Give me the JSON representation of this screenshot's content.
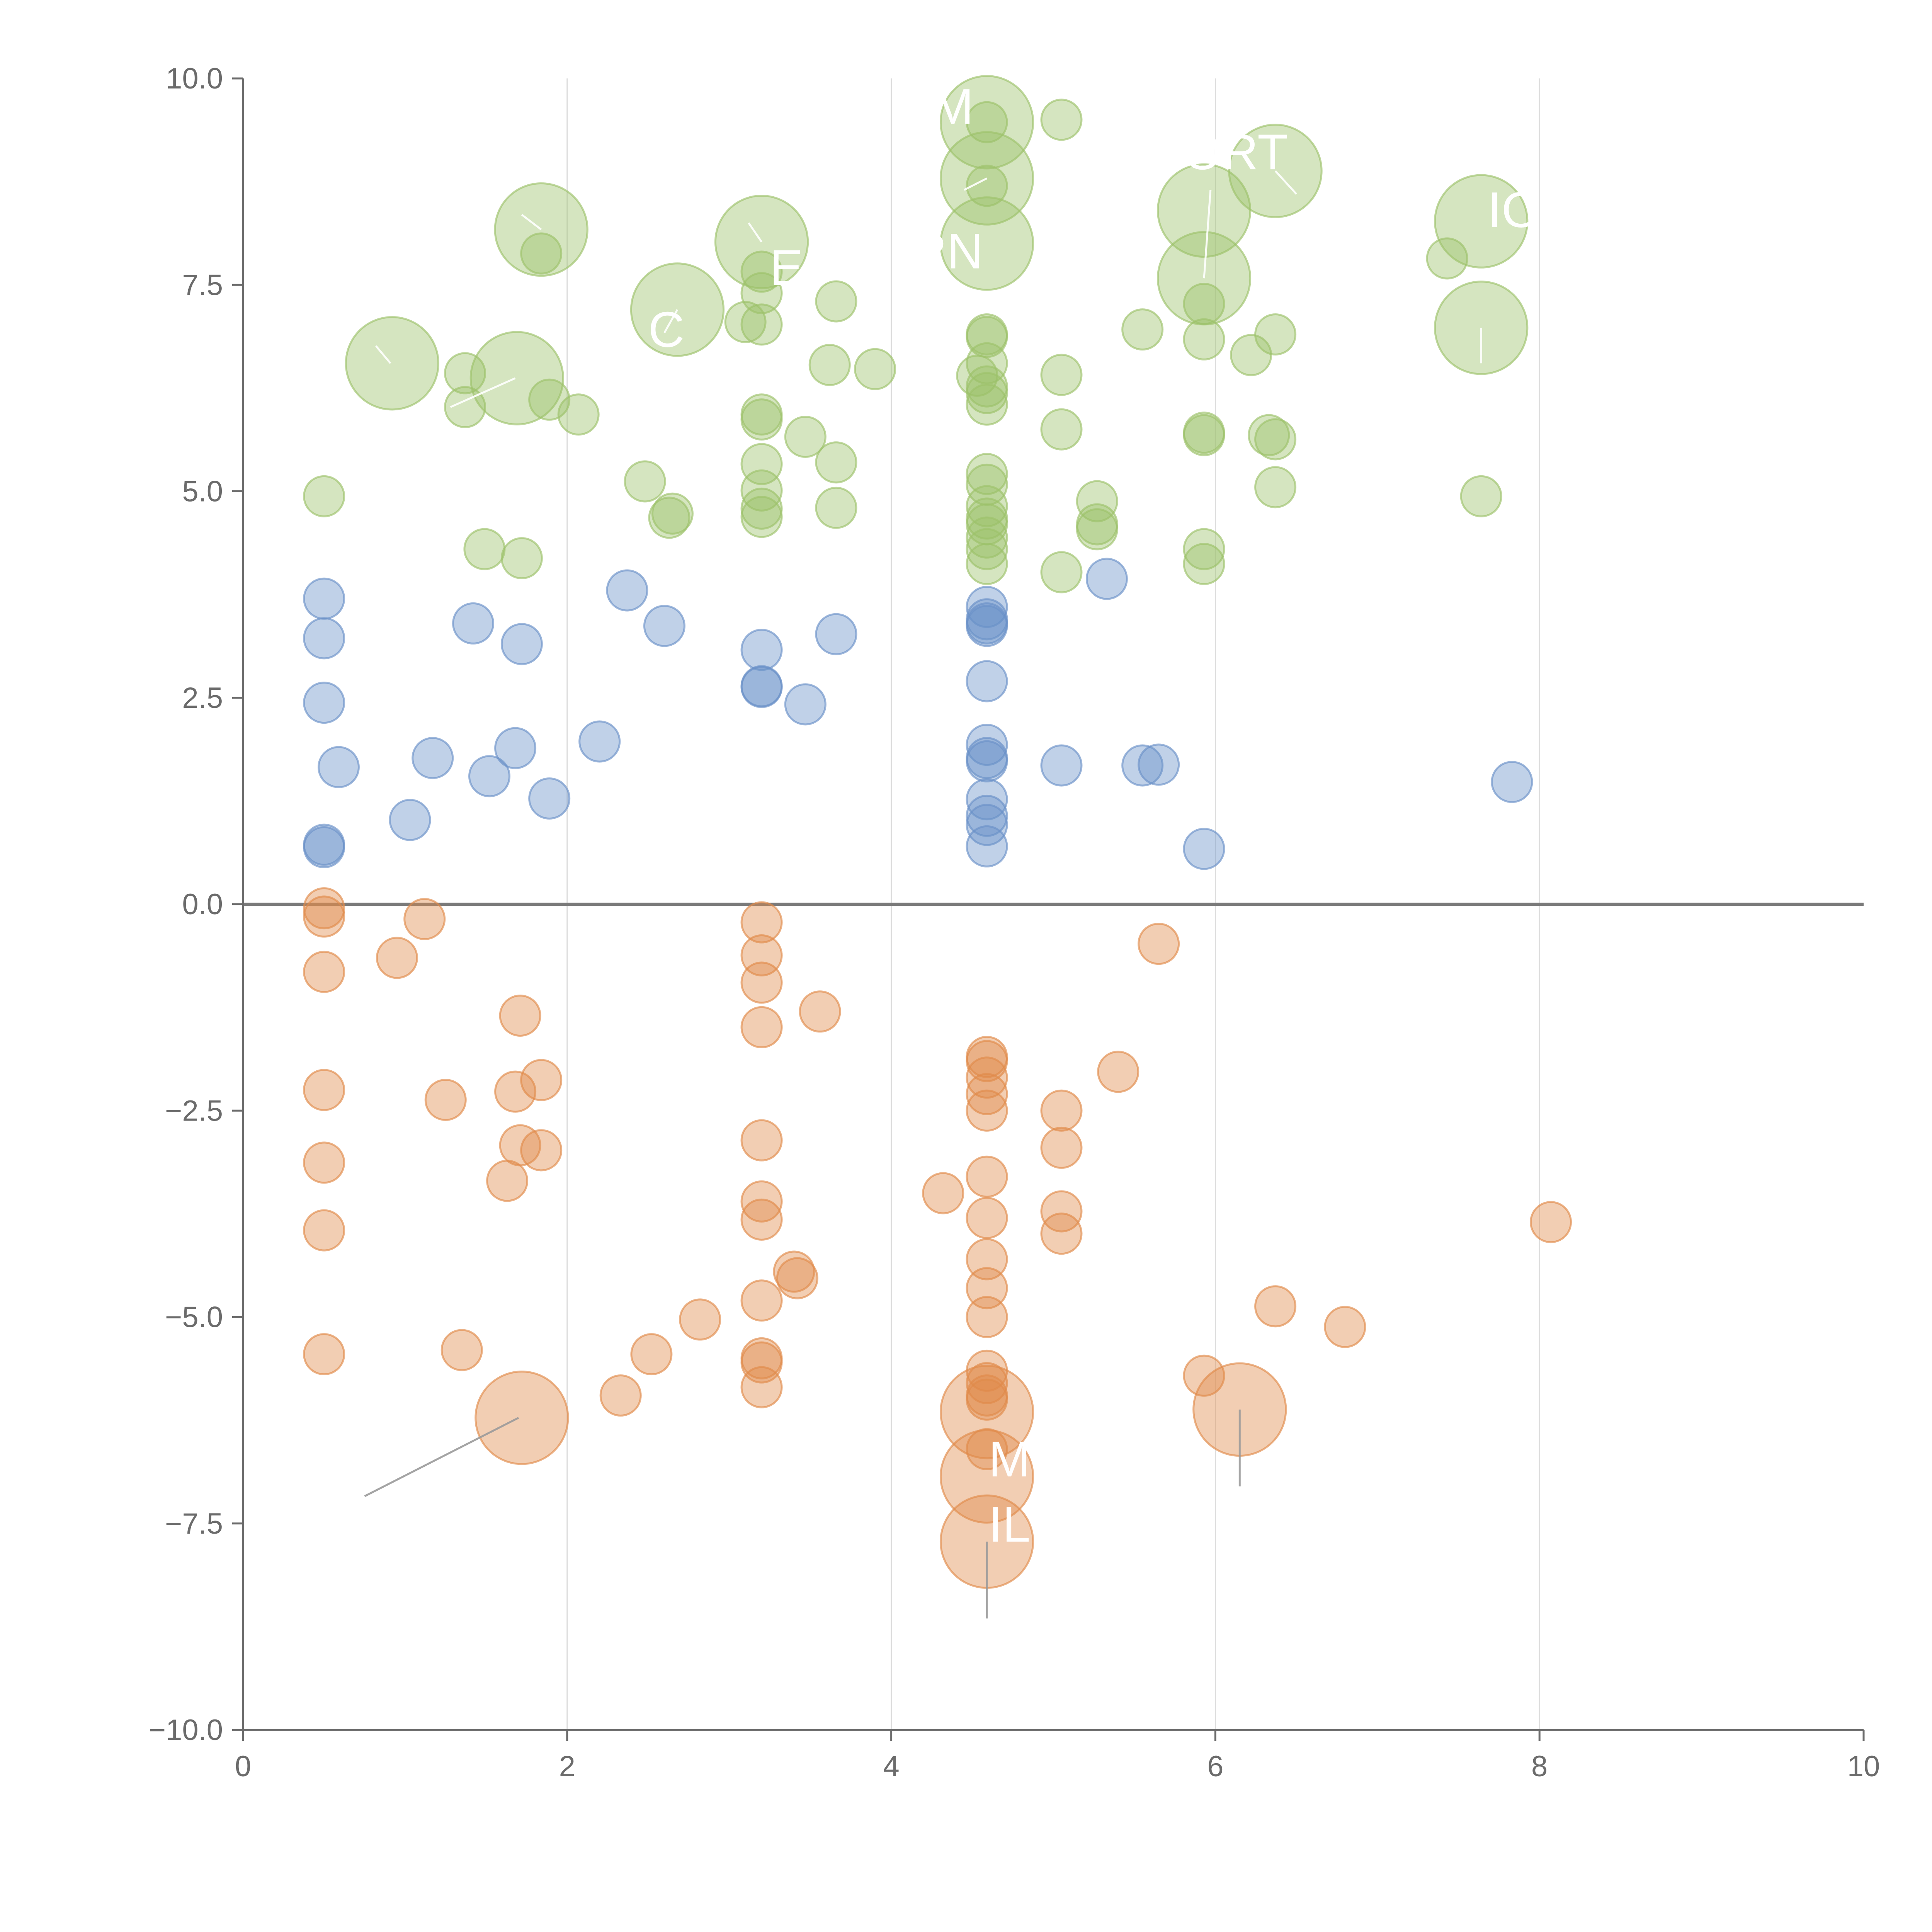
{
  "chart_data": {
    "type": "scatter",
    "title": "",
    "xlabel": "",
    "ylabel": "",
    "xlim": [
      0,
      10
    ],
    "ylim": [
      -10,
      10
    ],
    "x_ticks": [
      "0",
      "2",
      "4",
      "6",
      "8",
      "10"
    ],
    "y_ticks": [
      "−10.0",
      "−7.5",
      "−5.0",
      "−2.5",
      "0.0",
      "2.5",
      "5.0",
      "7.5",
      "10.0"
    ],
    "x_tick_values": [
      0,
      2,
      4,
      6,
      8,
      10
    ],
    "y_tick_values": [
      -10,
      -7.5,
      -5,
      -2.5,
      0,
      2.5,
      5,
      7.5,
      10
    ],
    "grid_x": true,
    "grid_y": false,
    "zero_line": true,
    "colors": {
      "green": "#9cc26a",
      "blue": "#6a91c8",
      "orange": "#e08a4a",
      "axis": "#6b6b6b",
      "grid": "#dcdcdc",
      "zero_line": "#7a7a7a"
    },
    "series": [
      {
        "color_key": "green",
        "points": [
          [
            0.5,
            4.94,
            1
          ],
          [
            0.92,
            6.55,
            2.3
          ],
          [
            1.37,
            6.43,
            1
          ],
          [
            1.37,
            6.02,
            1
          ],
          [
            1.49,
            4.3,
            1
          ],
          [
            1.69,
            6.37,
            2.3
          ],
          [
            1.72,
            4.19,
            1
          ],
          [
            1.84,
            8.17,
            2.3
          ],
          [
            1.84,
            7.88,
            1
          ],
          [
            1.89,
            6.11,
            1
          ],
          [
            2.07,
            5.93,
            1
          ],
          [
            2.48,
            5.12,
            1
          ],
          [
            2.63,
            4.68,
            1
          ],
          [
            2.65,
            4.73,
            1
          ],
          [
            2.68,
            7.2,
            2.3
          ],
          [
            3.1,
            7.05,
            1
          ],
          [
            3.2,
            7.02,
            1
          ],
          [
            3.2,
            8.02,
            2.3
          ],
          [
            3.2,
            7.66,
            1
          ],
          [
            3.2,
            7.4,
            1
          ],
          [
            3.2,
            5.93,
            1
          ],
          [
            3.2,
            5.87,
            1
          ],
          [
            3.2,
            5.33,
            1
          ],
          [
            3.2,
            5.01,
            1
          ],
          [
            3.2,
            4.79,
            1
          ],
          [
            3.2,
            4.69,
            1
          ],
          [
            3.47,
            5.66,
            1
          ],
          [
            3.62,
            6.53,
            1
          ],
          [
            3.66,
            5.35,
            1
          ],
          [
            3.66,
            4.8,
            1
          ],
          [
            3.66,
            7.3,
            1
          ],
          [
            3.9,
            6.48,
            1
          ],
          [
            4.59,
            9.47,
            2.3
          ],
          [
            4.59,
            9.47,
            1
          ],
          [
            4.59,
            8.79,
            2.3
          ],
          [
            4.59,
            8.7,
            1
          ],
          [
            4.59,
            8.0,
            2.3
          ],
          [
            4.59,
            6.9,
            1
          ],
          [
            4.59,
            6.87,
            1
          ],
          [
            4.59,
            6.55,
            1
          ],
          [
            4.53,
            6.4,
            1
          ],
          [
            4.59,
            6.27,
            1
          ],
          [
            4.59,
            6.19,
            1
          ],
          [
            4.59,
            6.05,
            1
          ],
          [
            4.59,
            5.21,
            1
          ],
          [
            4.59,
            5.08,
            1
          ],
          [
            4.59,
            4.82,
            1
          ],
          [
            4.59,
            4.67,
            1
          ],
          [
            4.59,
            4.6,
            1
          ],
          [
            4.59,
            4.44,
            1
          ],
          [
            4.59,
            4.3,
            1
          ],
          [
            4.59,
            4.12,
            1
          ],
          [
            5.05,
            9.5,
            1
          ],
          [
            5.05,
            6.41,
            1
          ],
          [
            5.05,
            5.75,
            1
          ],
          [
            5.05,
            4.02,
            1
          ],
          [
            5.27,
            4.88,
            1
          ],
          [
            5.27,
            4.6,
            1
          ],
          [
            5.27,
            4.54,
            1
          ],
          [
            5.55,
            6.96,
            1
          ],
          [
            5.93,
            8.4,
            2.3
          ],
          [
            5.93,
            7.58,
            2.3
          ],
          [
            5.93,
            7.27,
            1
          ],
          [
            5.93,
            6.84,
            1
          ],
          [
            5.93,
            5.71,
            1
          ],
          [
            5.93,
            5.68,
            1
          ],
          [
            5.93,
            4.3,
            1
          ],
          [
            5.93,
            4.12,
            1
          ],
          [
            6.22,
            6.65,
            1
          ],
          [
            6.33,
            5.68,
            1
          ],
          [
            6.37,
            8.88,
            2.3
          ],
          [
            6.37,
            6.9,
            1
          ],
          [
            6.37,
            5.63,
            1
          ],
          [
            6.37,
            5.05,
            1
          ],
          [
            7.43,
            7.82,
            1
          ],
          [
            7.64,
            8.27,
            2.3
          ],
          [
            7.64,
            6.98,
            2.3
          ],
          [
            7.64,
            4.94,
            1
          ]
        ]
      },
      {
        "color_key": "blue",
        "points": [
          [
            0.5,
            3.7,
            1
          ],
          [
            0.5,
            3.22,
            1
          ],
          [
            0.5,
            2.44,
            1
          ],
          [
            0.59,
            1.66,
            1
          ],
          [
            0.5,
            0.72,
            1
          ],
          [
            0.5,
            0.69,
            1
          ],
          [
            1.03,
            1.02,
            1
          ],
          [
            1.17,
            1.77,
            1
          ],
          [
            1.42,
            3.4,
            1
          ],
          [
            1.52,
            1.55,
            1
          ],
          [
            1.68,
            1.89,
            1
          ],
          [
            1.72,
            3.15,
            1
          ],
          [
            1.89,
            1.28,
            1
          ],
          [
            2.2,
            1.97,
            1
          ],
          [
            2.37,
            3.8,
            1
          ],
          [
            2.6,
            3.37,
            1
          ],
          [
            3.2,
            3.08,
            1
          ],
          [
            3.2,
            2.64,
            1
          ],
          [
            3.2,
            2.63,
            1
          ],
          [
            3.47,
            2.42,
            1
          ],
          [
            3.66,
            3.27,
            1
          ],
          [
            4.59,
            3.6,
            1
          ],
          [
            4.59,
            3.45,
            1
          ],
          [
            4.59,
            3.4,
            1
          ],
          [
            4.59,
            3.37,
            1
          ],
          [
            4.59,
            2.7,
            1
          ],
          [
            4.59,
            1.93,
            1
          ],
          [
            4.59,
            1.77,
            1
          ],
          [
            4.59,
            1.73,
            1
          ],
          [
            4.59,
            1.27,
            1
          ],
          [
            4.59,
            1.07,
            1
          ],
          [
            4.59,
            0.96,
            1
          ],
          [
            4.59,
            0.7,
            1
          ],
          [
            5.05,
            1.68,
            1
          ],
          [
            5.33,
            3.94,
            1
          ],
          [
            5.55,
            1.68,
            1
          ],
          [
            5.65,
            1.69,
            1
          ],
          [
            5.93,
            0.67,
            1
          ],
          [
            7.83,
            1.48,
            1
          ]
        ]
      },
      {
        "color_key": "orange",
        "points": [
          [
            0.5,
            -0.05,
            1
          ],
          [
            0.5,
            -0.15,
            1
          ],
          [
            0.5,
            -0.82,
            1
          ],
          [
            0.5,
            -2.25,
            1
          ],
          [
            0.5,
            -3.13,
            1
          ],
          [
            0.5,
            -3.95,
            1
          ],
          [
            0.5,
            -5.45,
            1
          ],
          [
            0.95,
            -0.65,
            1
          ],
          [
            1.12,
            -0.18,
            1
          ],
          [
            1.25,
            -2.37,
            1
          ],
          [
            1.35,
            -5.4,
            1
          ],
          [
            1.63,
            -3.35,
            1
          ],
          [
            1.68,
            -2.27,
            1
          ],
          [
            1.71,
            -1.35,
            1
          ],
          [
            1.71,
            -2.92,
            1
          ],
          [
            1.72,
            -6.22,
            2.3
          ],
          [
            1.84,
            -2.13,
            1
          ],
          [
            1.84,
            -2.98,
            1
          ],
          [
            2.33,
            -5.95,
            1
          ],
          [
            2.52,
            -5.45,
            1
          ],
          [
            2.82,
            -5.03,
            1
          ],
          [
            3.2,
            -0.22,
            1
          ],
          [
            3.2,
            -0.62,
            1
          ],
          [
            3.2,
            -0.95,
            1
          ],
          [
            3.2,
            -1.49,
            1
          ],
          [
            3.2,
            -2.86,
            1
          ],
          [
            3.2,
            -3.6,
            1
          ],
          [
            3.2,
            -3.82,
            1
          ],
          [
            3.2,
            -4.8,
            1
          ],
          [
            3.2,
            -5.5,
            1
          ],
          [
            3.2,
            -5.55,
            1
          ],
          [
            3.2,
            -5.85,
            1
          ],
          [
            3.4,
            -4.45,
            1
          ],
          [
            3.42,
            -4.53,
            1
          ],
          [
            3.56,
            -1.3,
            1
          ],
          [
            4.32,
            -3.5,
            1
          ],
          [
            4.59,
            -1.85,
            1
          ],
          [
            4.59,
            -1.9,
            1
          ],
          [
            4.59,
            -2.1,
            1
          ],
          [
            4.59,
            -2.3,
            1
          ],
          [
            4.59,
            -2.5,
            1
          ],
          [
            4.59,
            -3.3,
            1
          ],
          [
            4.59,
            -3.8,
            1
          ],
          [
            4.59,
            -4.3,
            1
          ],
          [
            4.59,
            -4.65,
            1
          ],
          [
            4.59,
            -5.0,
            1
          ],
          [
            4.59,
            -5.65,
            1
          ],
          [
            4.59,
            -5.8,
            1
          ],
          [
            4.59,
            -5.95,
            1
          ],
          [
            4.59,
            -6.0,
            1
          ],
          [
            4.59,
            -6.15,
            2.3
          ],
          [
            4.59,
            -6.6,
            1
          ],
          [
            4.59,
            -6.93,
            2.3
          ],
          [
            4.59,
            -7.72,
            2.3
          ],
          [
            5.05,
            -2.5,
            1
          ],
          [
            5.05,
            -2.95,
            1
          ],
          [
            5.05,
            -3.72,
            1
          ],
          [
            5.05,
            -3.99,
            1
          ],
          [
            5.4,
            -2.03,
            1
          ],
          [
            5.65,
            -0.48,
            1
          ],
          [
            5.93,
            -5.71,
            1
          ],
          [
            6.15,
            -6.12,
            2.3
          ],
          [
            6.37,
            -4.87,
            1
          ],
          [
            6.8,
            -5.12,
            1
          ],
          [
            8.07,
            -3.85,
            1
          ]
        ]
      }
    ],
    "leader_lines": [
      {
        "color": "#ffffff",
        "x1": 1.68,
        "y1": 6.37,
        "x2": 1.28,
        "y2": 6.02
      },
      {
        "color": "#ffffff",
        "x1": 0.91,
        "y1": 6.55,
        "x2": 0.82,
        "y2": 6.76
      },
      {
        "color": "#ffffff",
        "x1": 1.84,
        "y1": 8.17,
        "x2": 1.72,
        "y2": 8.35
      },
      {
        "color": "#ffffff",
        "x1": 2.68,
        "y1": 7.2,
        "x2": 2.6,
        "y2": 6.92
      },
      {
        "color": "#ffffff",
        "x1": 3.2,
        "y1": 8.02,
        "x2": 3.12,
        "y2": 8.25
      },
      {
        "color": "#ffffff",
        "x1": 4.59,
        "y1": 8.79,
        "x2": 4.45,
        "y2": 8.65
      },
      {
        "color": "#ffffff",
        "x1": 5.93,
        "y1": 7.58,
        "x2": 5.97,
        "y2": 8.65
      },
      {
        "color": "#ffffff",
        "x1": 6.37,
        "y1": 8.88,
        "x2": 6.5,
        "y2": 8.6
      },
      {
        "color": "#ffffff",
        "x1": 7.64,
        "y1": 6.98,
        "x2": 7.64,
        "y2": 6.55
      },
      {
        "color": "#9a9a9a",
        "x1": 1.7,
        "y1": -6.22,
        "x2": 0.75,
        "y2": -7.17
      },
      {
        "color": "#9a9a9a",
        "x1": 4.59,
        "y1": -7.72,
        "x2": 4.59,
        "y2": -8.65
      },
      {
        "color": "#9a9a9a",
        "x1": 6.15,
        "y1": -6.12,
        "x2": 6.15,
        "y2": -7.05
      }
    ],
    "annotations": [
      {
        "text": "M",
        "x": 4.25,
        "y": 9.45
      },
      {
        "text": "ORT",
        "x": 5.8,
        "y": 8.9
      },
      {
        "text": "IO",
        "x": 7.68,
        "y": 8.2
      },
      {
        "text": "RN",
        "x": 4.12,
        "y": 7.7
      },
      {
        "text": "E",
        "x": 3.25,
        "y": 7.5
      },
      {
        "text": "C",
        "x": 2.5,
        "y": 6.75
      },
      {
        "text": "M",
        "x": 4.6,
        "y": -6.93
      },
      {
        "text": "IL",
        "x": 4.6,
        "y": -7.72
      }
    ]
  }
}
